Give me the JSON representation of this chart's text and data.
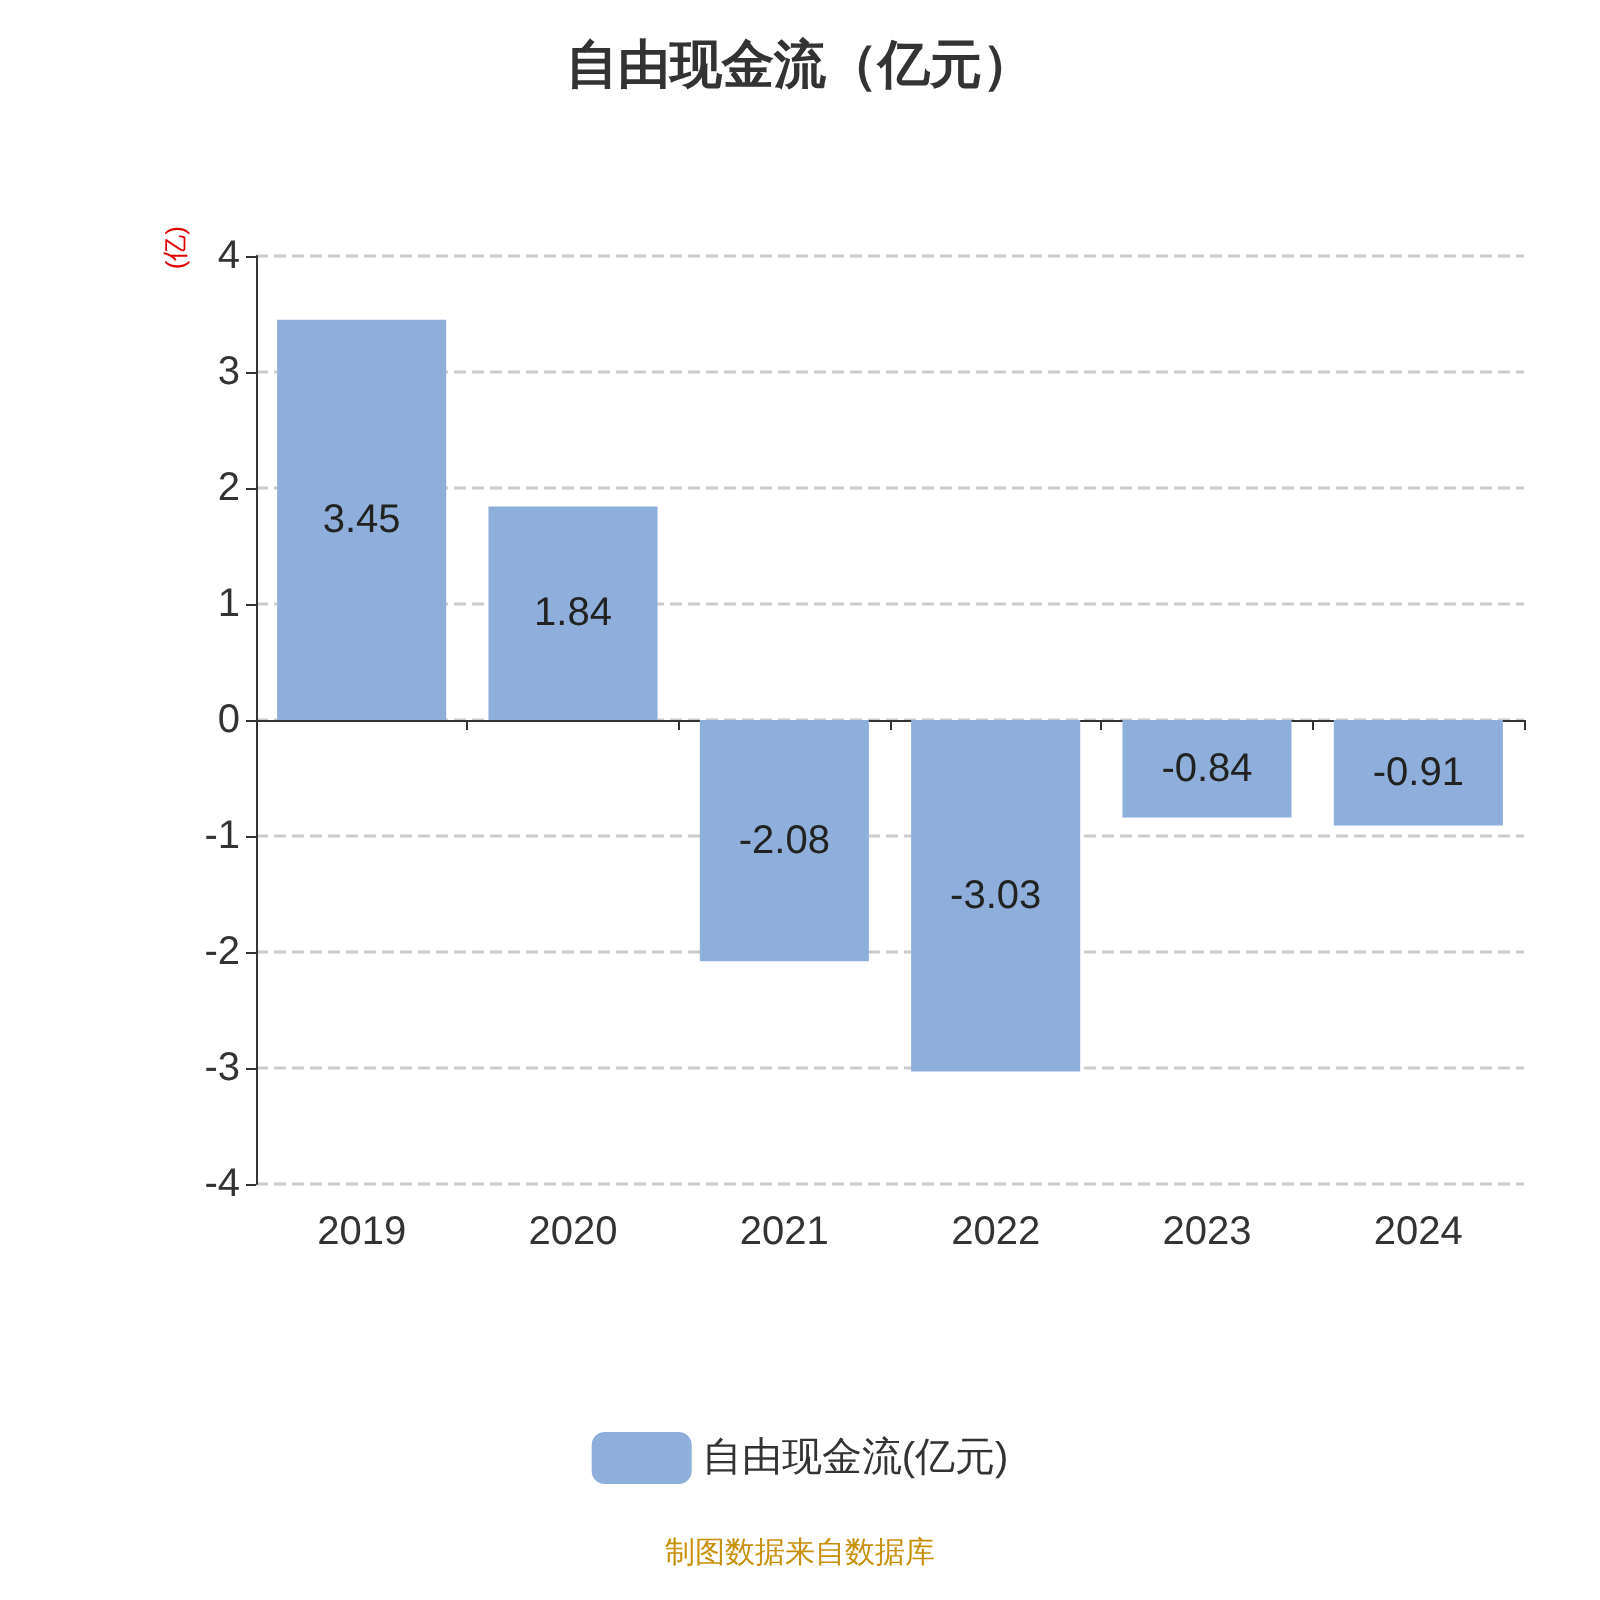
{
  "chart_data": {
    "type": "bar",
    "title": "自由现金流（亿元）",
    "ylabel": "(亿)",
    "categories": [
      "2019",
      "2020",
      "2021",
      "2022",
      "2023",
      "2024"
    ],
    "series": [
      {
        "name": "自由现金流(亿元)",
        "color": "#8eaedb",
        "values": [
          3.45,
          1.84,
          -2.08,
          -3.03,
          -0.84,
          -0.91
        ]
      }
    ],
    "ylim": [
      -4,
      4
    ],
    "yticks": [
      -4,
      -3,
      -2,
      -1,
      0,
      1,
      2,
      3,
      4
    ],
    "grid": "y",
    "legend": "bottom",
    "data_labels": true,
    "annotations": [
      "制图数据来自数据库"
    ]
  }
}
